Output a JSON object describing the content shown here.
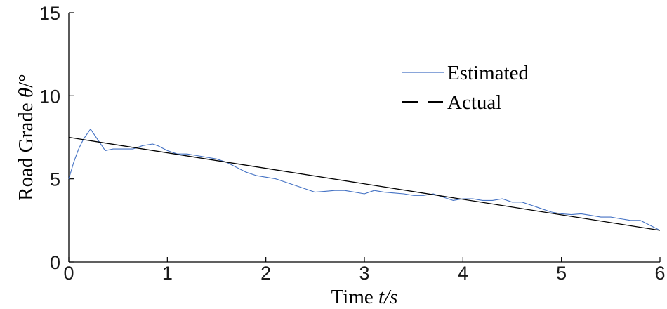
{
  "chart_data": {
    "type": "line",
    "xlabel": {
      "text": "Time ",
      "var": "t",
      "unit": "/s"
    },
    "ylabel": {
      "text": "Road Grade ",
      "var": "θ",
      "unit": "/°"
    },
    "xlim": [
      0,
      6
    ],
    "ylim": [
      0,
      15
    ],
    "xticks": [
      "0",
      "1",
      "2",
      "3",
      "4",
      "5",
      "6"
    ],
    "yticks": [
      "0",
      "5",
      "10",
      "15"
    ],
    "grid": false,
    "legend_position": "top-right",
    "series": [
      {
        "name": "Estimated",
        "color": "#4472c4",
        "style": "solid",
        "x": [
          0,
          0.05,
          0.1,
          0.15,
          0.22,
          0.3,
          0.37,
          0.45,
          0.55,
          0.65,
          0.75,
          0.85,
          0.9,
          1.0,
          1.1,
          1.2,
          1.3,
          1.4,
          1.5,
          1.6,
          1.7,
          1.8,
          1.9,
          2.0,
          2.1,
          2.2,
          2.3,
          2.4,
          2.5,
          2.6,
          2.7,
          2.8,
          2.9,
          3.0,
          3.1,
          3.2,
          3.3,
          3.4,
          3.5,
          3.6,
          3.7,
          3.8,
          3.9,
          4.0,
          4.1,
          4.2,
          4.3,
          4.4,
          4.5,
          4.6,
          4.7,
          4.8,
          4.9,
          5.0,
          5.1,
          5.2,
          5.3,
          5.4,
          5.5,
          5.6,
          5.7,
          5.8,
          5.9,
          6.0
        ],
        "values": [
          5.0,
          6.0,
          6.8,
          7.4,
          8.0,
          7.3,
          6.7,
          6.8,
          6.8,
          6.8,
          7.0,
          7.1,
          7.0,
          6.7,
          6.5,
          6.5,
          6.4,
          6.3,
          6.2,
          6.0,
          5.7,
          5.4,
          5.2,
          5.1,
          5.0,
          4.8,
          4.6,
          4.4,
          4.2,
          4.25,
          4.3,
          4.3,
          4.2,
          4.1,
          4.3,
          4.2,
          4.15,
          4.1,
          4.0,
          4.0,
          4.1,
          3.9,
          3.7,
          3.8,
          3.8,
          3.7,
          3.7,
          3.8,
          3.6,
          3.6,
          3.4,
          3.2,
          3.0,
          2.9,
          2.85,
          2.9,
          2.8,
          2.7,
          2.7,
          2.6,
          2.5,
          2.5,
          2.2,
          1.9
        ]
      },
      {
        "name": "Actual",
        "color": "#000000",
        "style": "dashed",
        "x": [
          0,
          6
        ],
        "values": [
          7.5,
          1.9
        ]
      }
    ]
  }
}
